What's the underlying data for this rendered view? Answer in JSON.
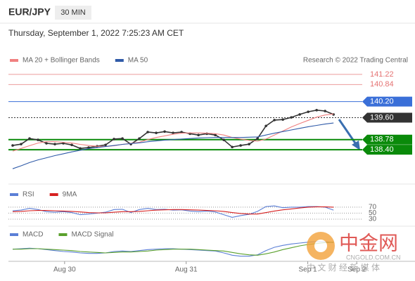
{
  "header": {
    "symbol": "EUR/JPY",
    "interval": "30 MIN",
    "datetime": "Thursday, September 1, 2022 7:25:23 AM CET",
    "source": "Research © 2022 Trading Central"
  },
  "watermark": {
    "name": "中金网",
    "site": "CNGOLD.COM.CN",
    "tagline": "中 文 财 经 新 媒 体"
  },
  "chart_data": [
    {
      "type": "line",
      "xlim": [
        -0.25,
        47.9
      ],
      "ylim": [
        137.3,
        141.9
      ],
      "xticks": [
        {
          "value": 6.4,
          "label": "Aug 30"
        },
        {
          "value": 20.8,
          "label": "Aug 31"
        },
        {
          "value": 35.2,
          "label": "Sep 1"
        },
        {
          "value": 41,
          "label": "Sep 2"
        }
      ],
      "levels": [
        {
          "value": 141.22,
          "label": "141.22",
          "color": "#e57373"
        },
        {
          "value": 140.84,
          "label": "140.84",
          "color": "#e57373"
        },
        {
          "value": 140.2,
          "label": "140.20",
          "color": "#3a6fd8"
        },
        {
          "value": 139.6,
          "label": "139.60",
          "color": "#333333"
        },
        {
          "value": 138.78,
          "label": "138.78",
          "color": "#0a8a0a"
        },
        {
          "value": 138.4,
          "label": "138.40",
          "color": "#0a8a0a"
        }
      ],
      "series": [
        {
          "name": "Price",
          "color": "#333333",
          "values": [
            138.56,
            138.61,
            138.82,
            138.77,
            138.64,
            138.61,
            138.64,
            138.58,
            138.45,
            138.48,
            138.53,
            138.58,
            138.8,
            138.82,
            138.61,
            138.82,
            139.06,
            139.03,
            139.08,
            139.03,
            139.06,
            139.0,
            138.95,
            139.0,
            138.95,
            138.77,
            138.5,
            138.56,
            138.61,
            138.82,
            139.29,
            139.51,
            139.53,
            139.61,
            139.72,
            139.82,
            139.88,
            139.85,
            139.72
          ]
        },
        {
          "name": "MA 20 + Bollinger Bands",
          "color": "#f08080",
          "values": [
            138.35,
            138.45,
            138.55,
            138.65,
            138.7,
            138.7,
            138.68,
            138.65,
            138.6,
            138.56,
            138.53,
            138.52,
            138.55,
            138.6,
            138.64,
            138.68,
            138.78,
            138.86,
            138.92,
            138.98,
            139.02,
            139.03,
            139.03,
            139.02,
            139.0,
            138.95,
            138.86,
            138.8,
            138.75,
            138.72,
            138.8,
            138.95,
            139.1,
            139.25,
            139.38,
            139.5,
            139.62,
            139.7,
            139.74
          ]
        },
        {
          "name": "MA 50",
          "color": "#2f5aa8",
          "values": [
            137.69,
            137.8,
            137.92,
            138.02,
            138.1,
            138.18,
            138.25,
            138.32,
            138.38,
            138.44,
            138.48,
            138.52,
            138.56,
            138.6,
            138.63,
            138.66,
            138.7,
            138.73,
            138.76,
            138.78,
            138.8,
            138.82,
            138.84,
            138.85,
            138.86,
            138.86,
            138.86,
            138.86,
            138.87,
            138.88,
            138.95,
            139.02,
            139.08,
            139.14,
            139.2,
            139.26,
            139.31,
            139.36,
            139.4
          ]
        }
      ]
    },
    {
      "type": "line",
      "xlim": [
        -0.25,
        47.9
      ],
      "ylim": [
        16,
        93
      ],
      "yticks": [
        70,
        50,
        30
      ],
      "series": [
        {
          "name": "RSI",
          "color": "#5b7fd6",
          "values": [
            58,
            60,
            66,
            62,
            55,
            53,
            55,
            52,
            45,
            47,
            50,
            53,
            62,
            63,
            52,
            62,
            66,
            62,
            63,
            60,
            61,
            57,
            55,
            57,
            54,
            45,
            36,
            42,
            46,
            56,
            72,
            74,
            68,
            70,
            70,
            72,
            72,
            70,
            60
          ]
        },
        {
          "name": "9MA",
          "color": "#d62020",
          "values": [
            55,
            56,
            58,
            59,
            59,
            58,
            57,
            56,
            54,
            52,
            51,
            51,
            53,
            55,
            55,
            56,
            58,
            60,
            61,
            62,
            62,
            61,
            60,
            59,
            58,
            56,
            52,
            49,
            47,
            47,
            52,
            57,
            61,
            64,
            67,
            70,
            71,
            71,
            70
          ]
        }
      ]
    },
    {
      "type": "line",
      "xlim": [
        -0.25,
        47.9
      ],
      "ylim": [
        -0.3,
        0.3
      ],
      "series": [
        {
          "name": "MACD",
          "color": "#5b7fd6",
          "values": [
            0.05,
            0.06,
            0.07,
            0.06,
            0.04,
            0.02,
            0.0,
            -0.01,
            -0.03,
            -0.04,
            -0.04,
            -0.03,
            0.0,
            0.01,
            0.0,
            0.02,
            0.04,
            0.05,
            0.06,
            0.06,
            0.05,
            0.04,
            0.03,
            0.02,
            0.01,
            -0.03,
            -0.08,
            -0.1,
            -0.1,
            -0.07,
            0.02,
            0.09,
            0.13,
            0.16,
            0.18,
            0.2,
            0.21,
            0.21,
            0.19
          ]
        },
        {
          "name": "MACD Signal",
          "color": "#5aa02c",
          "values": [
            0.05,
            0.05,
            0.06,
            0.06,
            0.05,
            0.04,
            0.03,
            0.02,
            0.0,
            -0.01,
            -0.02,
            -0.03,
            -0.02,
            -0.01,
            -0.01,
            0.0,
            0.01,
            0.03,
            0.04,
            0.05,
            0.05,
            0.05,
            0.04,
            0.03,
            0.02,
            0.01,
            -0.02,
            -0.05,
            -0.07,
            -0.08,
            -0.05,
            -0.01,
            0.04,
            0.08,
            0.12,
            0.15,
            0.17,
            0.19,
            0.2
          ]
        }
      ]
    }
  ]
}
